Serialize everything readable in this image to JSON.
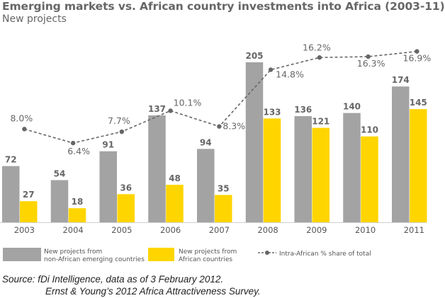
{
  "title": "Emerging markets vs. African country investments into Africa (2003-11)",
  "subtitle": "New projects",
  "colors": {
    "gray": "#a3a3a3",
    "yellow": "#ffd500",
    "line": "#666666"
  },
  "chart_data": {
    "type": "bar",
    "categories": [
      "2003",
      "2004",
      "2005",
      "2006",
      "2007",
      "2008",
      "2009",
      "2010",
      "2011"
    ],
    "series": [
      {
        "name": "New projects from non-African emerging countries",
        "values": [
          72,
          54,
          91,
          137,
          94,
          205,
          136,
          140,
          174
        ],
        "color": "#a3a3a3"
      },
      {
        "name": "New projects from African countries",
        "values": [
          27,
          18,
          36,
          48,
          35,
          133,
          121,
          110,
          145
        ],
        "color": "#ffd500"
      }
    ],
    "line_series": {
      "name": "Intra-African % share of total",
      "values": [
        8.0,
        6.4,
        7.7,
        10.1,
        8.3,
        14.8,
        16.2,
        16.3,
        16.9
      ],
      "labels": [
        "8.0%",
        "6.4%",
        "7.7%",
        "10.1%",
        "8.3%",
        "14.8%",
        "16.2%",
        "16.3%",
        "16.9%"
      ],
      "style": "dashed",
      "color": "#666666"
    },
    "ylim": [
      0,
      220
    ],
    "line_ylim": [
      0,
      18
    ],
    "legend": {
      "position": "bottom",
      "items": [
        {
          "lines": [
            "New projects from",
            "non-African emerging countries"
          ]
        },
        {
          "lines": [
            "New projects from",
            "African countries"
          ]
        },
        {
          "lines": [
            "Intra-African % share of total"
          ]
        }
      ]
    },
    "grid": false
  },
  "source": {
    "line1": "Source:  fDi Intelligence, data as of 3 February 2012.",
    "line2": "Ernst & Young’s 2012 Africa Attractiveness Survey."
  }
}
